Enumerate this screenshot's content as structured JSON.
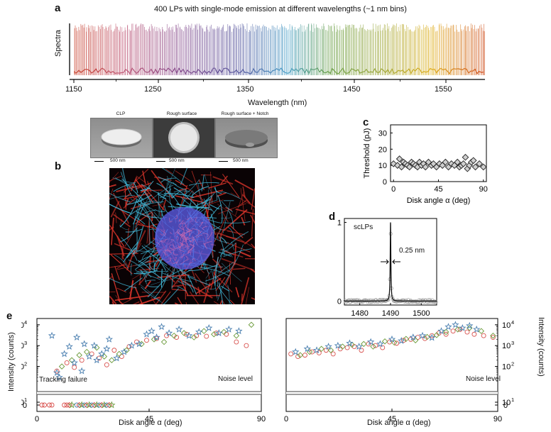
{
  "panel_a": {
    "letter": "a",
    "title": "400 LPs with single-mode emission at different wavelengths (~1 nm bins)",
    "ylabel": "Spectra",
    "xlabel": "Wavelength (nm)",
    "ticks": [
      "1150",
      "1250",
      "1350",
      "1450",
      "1550"
    ]
  },
  "panel_b": {
    "letter": "b",
    "images": [
      {
        "label": "CLP",
        "scale": "500 nm"
      },
      {
        "label": "Rough surface",
        "scale": "500 nm"
      },
      {
        "label": "Rough surface + Notch",
        "scale": "500 nm"
      }
    ]
  },
  "panel_c": {
    "letter": "c"
  },
  "panel_d": {
    "letter": "d",
    "label": "scLPs",
    "fwhm_label": "0.25 nm"
  },
  "panel_e": {
    "letter": "e",
    "ylabel_left": "Intensity (counts)",
    "ylabel_right": "Intensity (counts)",
    "tracking_failure": "Tracking failure",
    "noise_left": "Noise level",
    "noise_right": "Noise level",
    "xlabel_left": "Disk angle α (deg)",
    "xlabel_right": "Disk angle α (deg)"
  },
  "colors": {
    "red_series": "#d9534f",
    "green_series": "#6a9a3a",
    "blue_series": "#4a7fb0",
    "cyan_cells": "#41b8d8",
    "red_actin": "#d8342a"
  },
  "chart_data": [
    {
      "id": "c",
      "type": "scatter",
      "title": "",
      "xlabel": "Disk angle α (deg)",
      "ylabel": "Threshold (pJ)",
      "xlim": [
        -3,
        93
      ],
      "ylim": [
        0,
        35
      ],
      "xticks": [
        0,
        45,
        90
      ],
      "yticks": [
        0,
        10,
        20,
        30
      ],
      "marker": "diamond",
      "x": [
        0,
        4,
        6,
        8,
        10,
        12,
        14,
        16,
        18,
        20,
        22,
        24,
        26,
        28,
        30,
        32,
        35,
        38,
        40,
        43,
        46,
        49,
        52,
        55,
        58,
        61,
        64,
        66,
        68,
        70,
        72,
        74,
        76,
        78,
        80,
        82,
        86,
        90
      ],
      "y": [
        11,
        10,
        14,
        9,
        12,
        11,
        10,
        9,
        12,
        11,
        10,
        9,
        12,
        10,
        11,
        9,
        12,
        10,
        11,
        9,
        11,
        10,
        12,
        9,
        11,
        10,
        12,
        9,
        10,
        11,
        15,
        8,
        10,
        12,
        13,
        9,
        11,
        9
      ]
    },
    {
      "id": "d",
      "type": "line",
      "title": "",
      "xlabel": "",
      "ylabel": "",
      "xlim": [
        1475,
        1505
      ],
      "ylim": [
        -0.05,
        1.05
      ],
      "xticks": [
        1480,
        1490,
        1500
      ],
      "yticks": [
        0,
        1
      ],
      "series": [
        {
          "name": "scLPs",
          "center": 1490,
          "fwhm": 0.25,
          "peak": 1.0
        }
      ]
    },
    {
      "id": "e-left",
      "type": "scatter",
      "title": "",
      "xlabel": "Disk angle α (deg)",
      "ylabel": "Intensity (counts)",
      "xlim": [
        0,
        90
      ],
      "yscale": "log",
      "ylim": [
        10,
        20000
      ],
      "xticks": [
        0,
        45,
        90
      ],
      "yticks_labels": [
        "0",
        "10^1",
        "10^2",
        "10^3",
        "10^4"
      ],
      "tracking_failure_x": [
        2,
        3,
        5,
        6,
        11,
        12,
        13,
        14,
        16,
        17,
        18,
        19,
        20,
        21,
        22,
        23,
        24,
        25,
        26,
        27,
        28,
        29,
        30
      ],
      "series": [
        {
          "marker": "circle",
          "x": [
            8,
            12,
            15,
            18,
            22,
            25,
            28,
            31,
            34,
            37,
            40,
            44,
            48,
            52,
            56,
            60,
            64,
            68,
            72,
            76,
            80,
            84
          ],
          "y": [
            60,
            150,
            90,
            200,
            400,
            250,
            120,
            600,
            300,
            900,
            1500,
            1800,
            2200,
            3000,
            2500,
            3500,
            3000,
            2800,
            4000,
            3500,
            1500,
            1000
          ]
        },
        {
          "marker": "diamond",
          "x": [
            10,
            14,
            17,
            20,
            24,
            27,
            30,
            33,
            36,
            42,
            47,
            51,
            55,
            59,
            63,
            67,
            71,
            75,
            80,
            86
          ],
          "y": [
            100,
            200,
            350,
            500,
            800,
            300,
            200,
            400,
            600,
            1200,
            2000,
            1500,
            3000,
            4000,
            2500,
            5000,
            3500,
            4500,
            3000,
            10000
          ]
        },
        {
          "marker": "star",
          "x": [
            6,
            8,
            9,
            11,
            13,
            15,
            16,
            18,
            19,
            21,
            23,
            24,
            26,
            28,
            29,
            32,
            35,
            38,
            41,
            44,
            46,
            48,
            50,
            53,
            57,
            61,
            65,
            69,
            73,
            77,
            81
          ],
          "y": [
            3000,
            50,
            30,
            400,
            900,
            150,
            2500,
            60,
            1200,
            300,
            1000,
            200,
            400,
            700,
            2000,
            250,
            500,
            1000,
            1200,
            3500,
            5000,
            2500,
            8000,
            4000,
            6000,
            3000,
            4500,
            7000,
            4000,
            6000,
            5000
          ]
        }
      ]
    },
    {
      "id": "e-right",
      "type": "scatter",
      "title": "",
      "xlabel": "Disk angle α (deg)",
      "ylabel": "Intensity (counts)",
      "xlim": [
        0,
        90
      ],
      "yscale": "log",
      "ylim": [
        10,
        20000
      ],
      "xticks": [
        0,
        45,
        90
      ],
      "yticks_labels": [
        "0",
        "10^1",
        "10^2",
        "10^3",
        "10^4"
      ],
      "series": [
        {
          "marker": "circle",
          "x": [
            2,
            5,
            8,
            11,
            14,
            17,
            20,
            23,
            26,
            29,
            32,
            35,
            38,
            41,
            44,
            47,
            50,
            53,
            56,
            59,
            62,
            65,
            68,
            71,
            74,
            77,
            80,
            84,
            88
          ],
          "y": [
            400,
            300,
            350,
            500,
            450,
            600,
            400,
            700,
            800,
            900,
            600,
            1200,
            1000,
            800,
            1500,
            1300,
            1800,
            2000,
            2500,
            2200,
            3000,
            4000,
            3500,
            5000,
            6000,
            4500,
            3500,
            3000,
            2500
          ]
        },
        {
          "marker": "diamond",
          "x": [
            6,
            10,
            15,
            19,
            24,
            28,
            33,
            37,
            42,
            46,
            51,
            55,
            60,
            64,
            68,
            73,
            78,
            83,
            88
          ],
          "y": [
            350,
            500,
            700,
            600,
            900,
            1100,
            1200,
            900,
            1600,
            1400,
            2100,
            1800,
            2600,
            3200,
            4500,
            6000,
            7000,
            5000,
            3000
          ]
        },
        {
          "marker": "star",
          "x": [
            4,
            9,
            13,
            18,
            22,
            27,
            31,
            36,
            40,
            45,
            49,
            54,
            58,
            62,
            66,
            69,
            72,
            75,
            78,
            81
          ],
          "y": [
            500,
            700,
            600,
            900,
            1000,
            1300,
            900,
            1500,
            1200,
            2000,
            1700,
            2500,
            3000,
            2400,
            5000,
            8000,
            10000,
            7000,
            9000,
            6000
          ]
        }
      ]
    }
  ]
}
